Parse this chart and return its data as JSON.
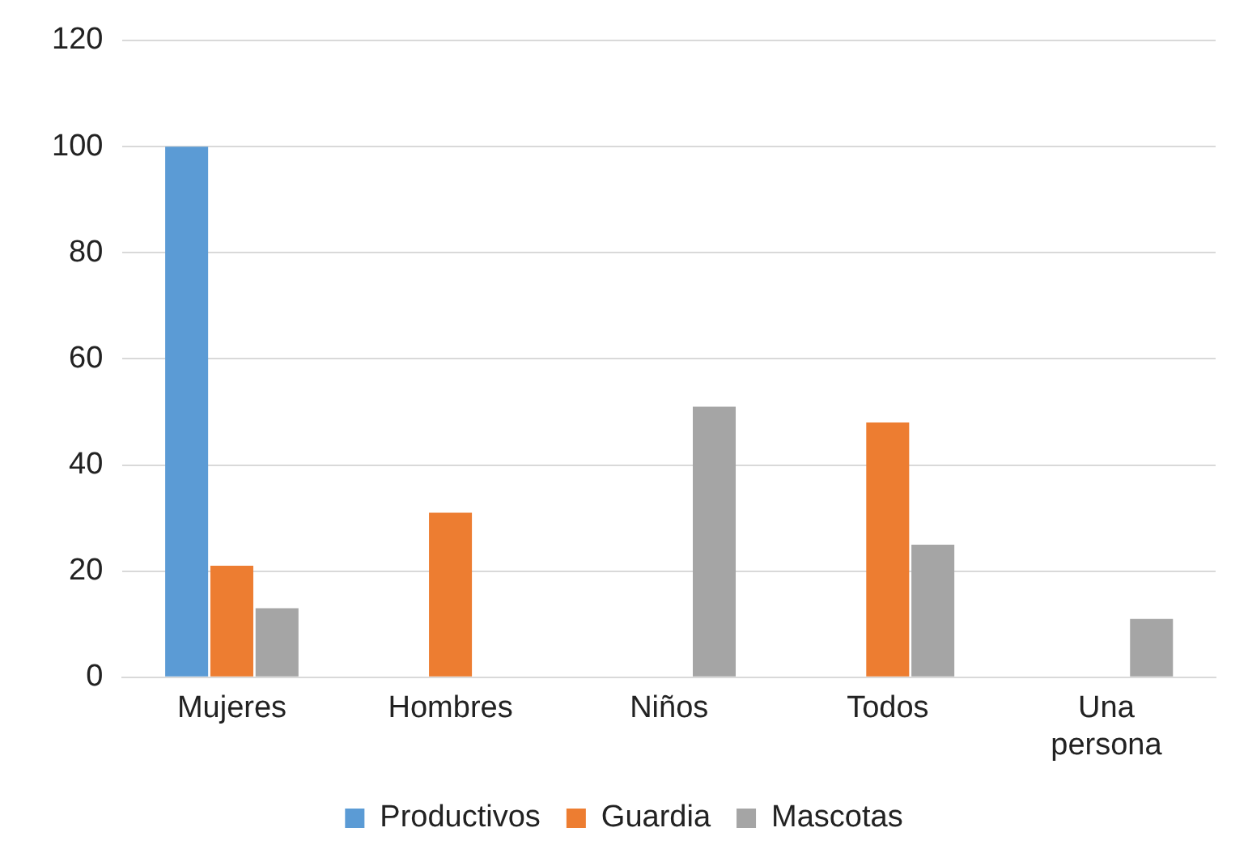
{
  "chart_data": {
    "type": "bar",
    "categories": [
      "Mujeres",
      "Hombres",
      "Niños",
      "Todos",
      "Una persona"
    ],
    "series": [
      {
        "name": "Productivos",
        "color": "#5b9bd5",
        "values": [
          100,
          null,
          null,
          null,
          null
        ]
      },
      {
        "name": "Guardia",
        "color": "#ed7d31",
        "values": [
          21,
          31,
          null,
          48,
          null
        ]
      },
      {
        "name": "Mascotas",
        "color": "#a5a5a5",
        "values": [
          13,
          null,
          51,
          25,
          11
        ]
      }
    ],
    "ylim": [
      0,
      120
    ],
    "yticks": [
      0,
      20,
      40,
      60,
      80,
      100,
      120
    ],
    "grid": "y",
    "legend": "bottom"
  }
}
